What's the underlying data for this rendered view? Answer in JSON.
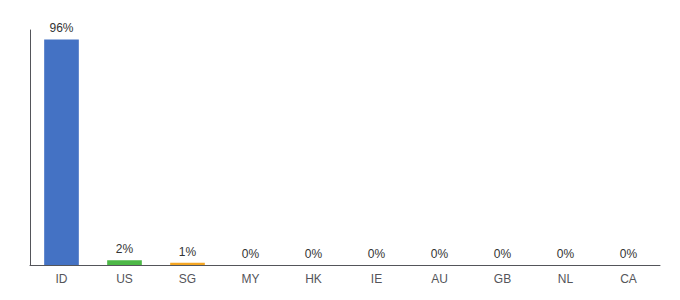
{
  "chart_data": {
    "type": "bar",
    "categories": [
      "ID",
      "US",
      "SG",
      "MY",
      "HK",
      "IE",
      "AU",
      "GB",
      "NL",
      "CA"
    ],
    "values": [
      96,
      2,
      1,
      0,
      0,
      0,
      0,
      0,
      0,
      0
    ],
    "value_labels": [
      "96%",
      "2%",
      "1%",
      "0%",
      "0%",
      "0%",
      "0%",
      "0%",
      "0%",
      "0%"
    ],
    "colors": [
      "#4472c4",
      "#4db847",
      "#f5a623",
      "#4472c4",
      "#4472c4",
      "#4472c4",
      "#4472c4",
      "#4472c4",
      "#4472c4",
      "#4472c4"
    ],
    "ylim": [
      0,
      100
    ],
    "data_labels": true,
    "tick_labels": "x",
    "grid": false
  }
}
